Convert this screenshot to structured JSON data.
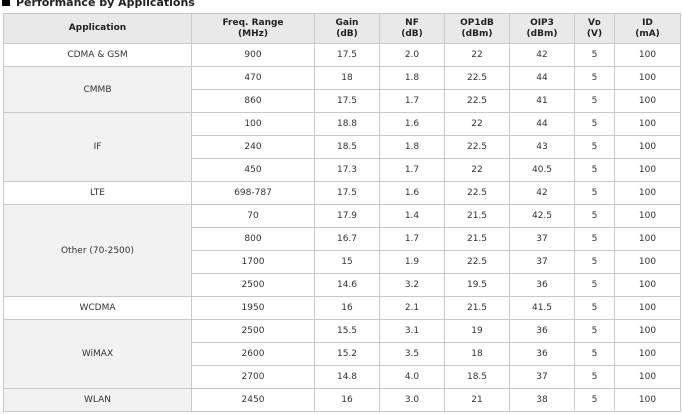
{
  "title": "Performance by Applications",
  "colors": {
    "header_bg": "#e9e9e9",
    "app_cell_bg": "#f2f2f2",
    "border": "#c9c9c9"
  },
  "headers": [
    [
      "Application"
    ],
    [
      "Freq. Range",
      "(MHz)"
    ],
    [
      "Gain",
      "(dB)"
    ],
    [
      "NF",
      "(dB)"
    ],
    [
      "OP1dB",
      "(dBm)"
    ],
    [
      "OIP3",
      "(dBm)"
    ],
    [
      "Vᴅ",
      "(V)"
    ],
    [
      "ID",
      "(mA)"
    ]
  ],
  "groups": [
    {
      "app": "CDMA & GSM",
      "shaded": false,
      "rows": [
        [
          "900",
          "17.5",
          "2.0",
          "22",
          "42",
          "5",
          "100"
        ]
      ]
    },
    {
      "app": "CMMB",
      "shaded": true,
      "rows": [
        [
          "470",
          "18",
          "1.8",
          "22.5",
          "44",
          "5",
          "100"
        ],
        [
          "860",
          "17.5",
          "1.7",
          "22.5",
          "41",
          "5",
          "100"
        ]
      ]
    },
    {
      "app": "IF",
      "shaded": true,
      "rows": [
        [
          "100",
          "18.8",
          "1.6",
          "22",
          "44",
          "5",
          "100"
        ],
        [
          "240",
          "18.5",
          "1.8",
          "22.5",
          "43",
          "5",
          "100"
        ],
        [
          "450",
          "17.3",
          "1.7",
          "22",
          "40.5",
          "5",
          "100"
        ]
      ]
    },
    {
      "app": "LTE",
      "shaded": false,
      "rows": [
        [
          "698-787",
          "17.5",
          "1.6",
          "22.5",
          "42",
          "5",
          "100"
        ]
      ]
    },
    {
      "app": "Other (70-2500)",
      "shaded": true,
      "rows": [
        [
          "70",
          "17.9",
          "1.4",
          "21.5",
          "42.5",
          "5",
          "100"
        ],
        [
          "800",
          "16.7",
          "1.7",
          "21.5",
          "37",
          "5",
          "100"
        ],
        [
          "1700",
          "15",
          "1.9",
          "22.5",
          "37",
          "5",
          "100"
        ],
        [
          "2500",
          "14.6",
          "3.2",
          "19.5",
          "36",
          "5",
          "100"
        ]
      ]
    },
    {
      "app": "WCDMA",
      "shaded": false,
      "rows": [
        [
          "1950",
          "16",
          "2.1",
          "21.5",
          "41.5",
          "5",
          "100"
        ]
      ]
    },
    {
      "app": "WiMAX",
      "shaded": true,
      "rows": [
        [
          "2500",
          "15.5",
          "3.1",
          "19",
          "36",
          "5",
          "100"
        ],
        [
          "2600",
          "15.2",
          "3.5",
          "18",
          "36",
          "5",
          "100"
        ],
        [
          "2700",
          "14.8",
          "4.0",
          "18.5",
          "37",
          "5",
          "100"
        ]
      ]
    },
    {
      "app": "WLAN",
      "shaded": true,
      "rows": [
        [
          "2450",
          "16",
          "3.0",
          "21",
          "38",
          "5",
          "100"
        ]
      ]
    }
  ]
}
